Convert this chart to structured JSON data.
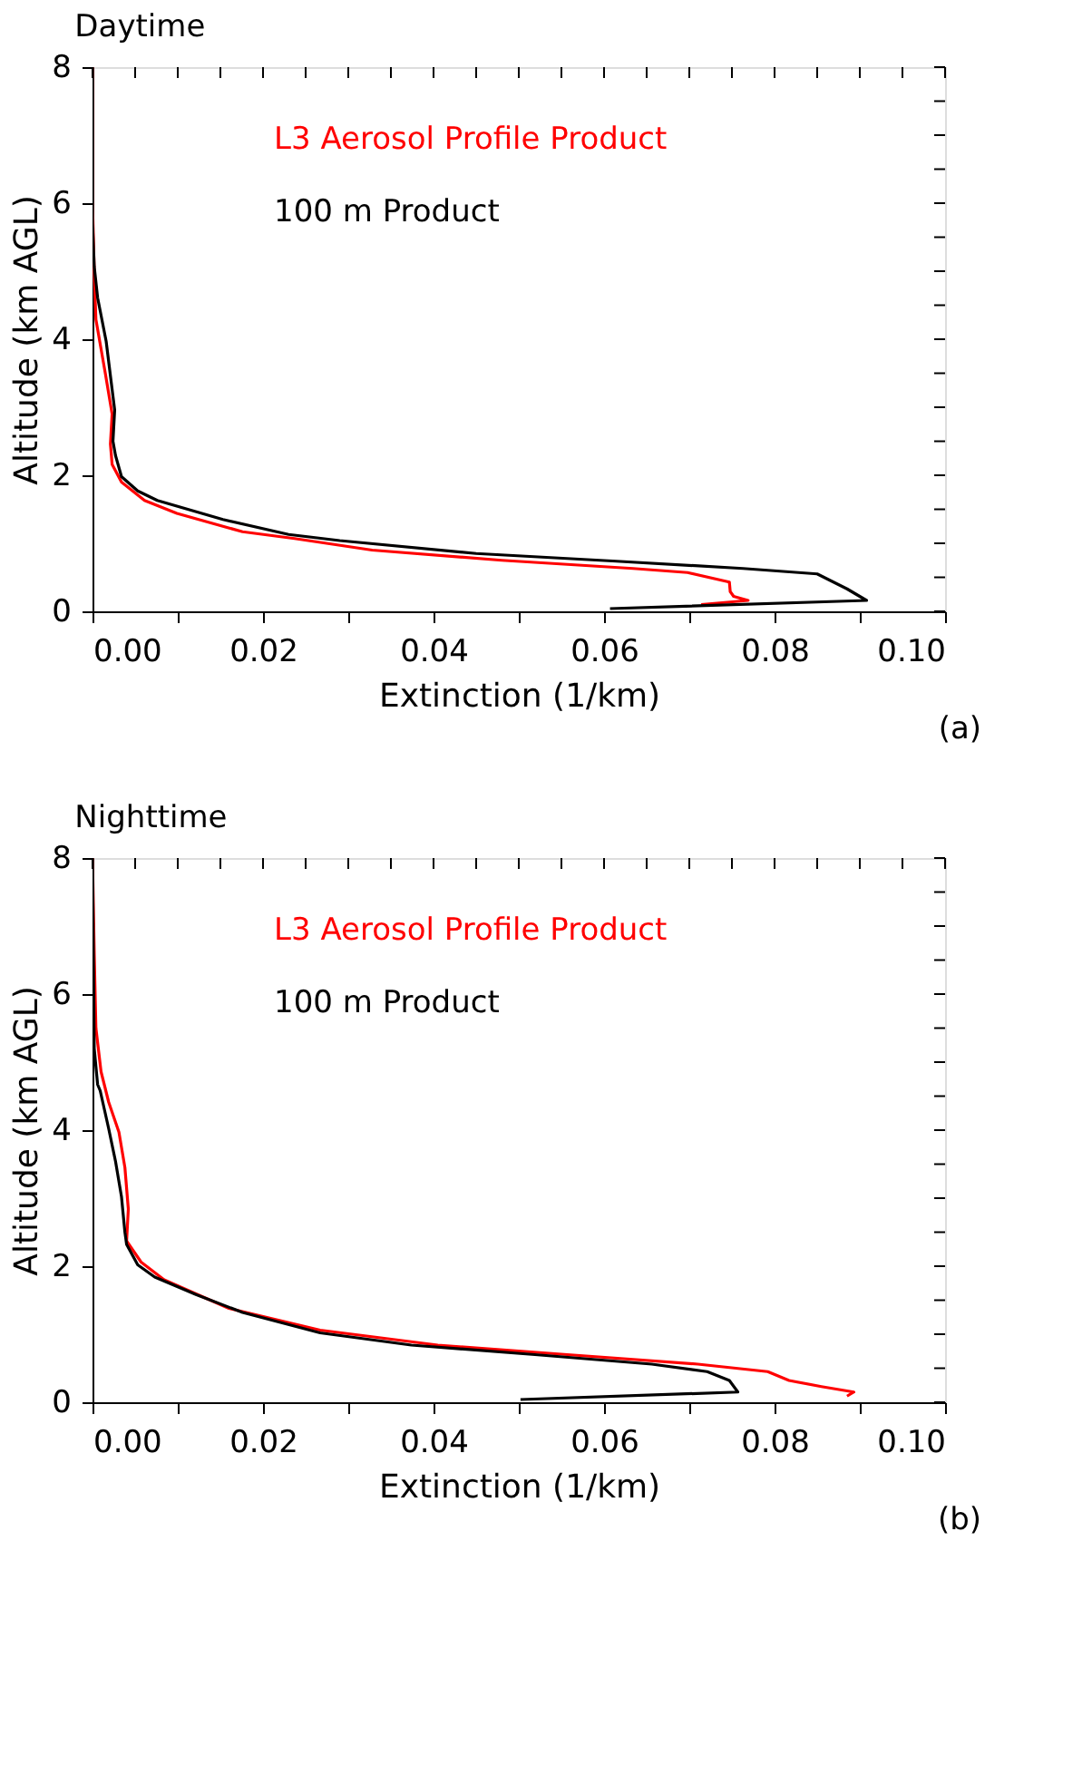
{
  "chart_data": [
    {
      "type": "line",
      "title": "Daytime",
      "xlabel": "Extinction (1/km)",
      "ylabel": "Altitude (km AGL)",
      "annotations": [
        "(a)"
      ],
      "legend": "top",
      "line_style": "solid",
      "xlim": [
        0,
        0.1
      ],
      "ylim": [
        0,
        8
      ],
      "xticks": [
        {
          "value": 0,
          "label": "0.00"
        },
        {
          "value": 0.005,
          "label": null
        },
        {
          "value": 0.01,
          "label": null
        },
        {
          "value": 0.015,
          "label": null
        },
        {
          "value": 0.02,
          "label": "0.02"
        },
        {
          "value": 0.025,
          "label": null
        },
        {
          "value": 0.03,
          "label": null
        },
        {
          "value": 0.035,
          "label": null
        },
        {
          "value": 0.04,
          "label": "0.04"
        },
        {
          "value": 0.045,
          "label": null
        },
        {
          "value": 0.05,
          "label": null
        },
        {
          "value": 0.055,
          "label": null
        },
        {
          "value": 0.06,
          "label": "0.06"
        },
        {
          "value": 0.065,
          "label": null
        },
        {
          "value": 0.07,
          "label": null
        },
        {
          "value": 0.075,
          "label": null
        },
        {
          "value": 0.08,
          "label": "0.08"
        },
        {
          "value": 0.085,
          "label": null
        },
        {
          "value": 0.09,
          "label": null
        },
        {
          "value": 0.095,
          "label": null
        },
        {
          "value": 0.1,
          "label": "0.10"
        }
      ],
      "yticks": [
        0,
        {
          "value": 0.5,
          "label": null
        },
        {
          "value": 1,
          "label": null
        },
        {
          "value": 1.5,
          "label": null
        },
        2,
        {
          "value": 2.5,
          "label": null
        },
        {
          "value": 3,
          "label": null
        },
        {
          "value": 3.5,
          "label": null
        },
        4,
        {
          "value": 4.5,
          "label": null
        },
        {
          "value": 5,
          "label": null
        },
        {
          "value": 5.5,
          "label": null
        },
        6,
        {
          "value": 6.5,
          "label": null
        },
        {
          "value": 7,
          "label": null
        },
        {
          "value": 7.5,
          "label": null
        },
        8
      ],
      "series": [
        {
          "name": "L3 Aerosol Profile Product",
          "color": "#ff0000",
          "x": [
            0.0714,
            0.0769,
            0.0752,
            0.0748,
            0.0747,
            0.0698,
            0.0634,
            0.048,
            0.0328,
            0.0237,
            0.0176,
            0.0099,
            0.0061,
            0.0034,
            0.0023,
            0.0021,
            0.0023,
            0.0015,
            0.0004,
            0.0002,
            0,
            0
          ],
          "values": [
            0.1,
            0.16,
            0.22,
            0.29,
            0.43,
            0.57,
            0.63,
            0.75,
            0.9,
            1.07,
            1.17,
            1.44,
            1.63,
            1.9,
            2.16,
            2.46,
            2.9,
            3.5,
            4.29,
            5.0,
            6.0,
            8.0
          ]
        },
        {
          "name": "100 m Product",
          "color": "#000000",
          "x": [
            0.0607,
            0.0908,
            0.0885,
            0.085,
            0.0763,
            0.061,
            0.045,
            0.029,
            0.023,
            0.0153,
            0.0076,
            0.0053,
            0.0034,
            0.0027,
            0.0024,
            0.0026,
            0.0016,
            0.0006,
            0.0002,
            0,
            0
          ],
          "values": [
            0.04,
            0.16,
            0.33,
            0.55,
            0.63,
            0.74,
            0.85,
            1.04,
            1.13,
            1.35,
            1.63,
            1.77,
            1.98,
            2.29,
            2.5,
            2.96,
            3.97,
            4.61,
            5.07,
            5.7,
            8.0
          ]
        }
      ]
    },
    {
      "type": "line",
      "title": "Nighttime",
      "xlabel": "Extinction (1/km)",
      "ylabel": "Altitude (km AGL)",
      "annotations": [
        "(b)"
      ],
      "legend": "top",
      "line_style": "solid",
      "xlim": [
        0,
        0.1
      ],
      "ylim": [
        0,
        8
      ],
      "xticks": [
        {
          "value": 0,
          "label": "0.00"
        },
        {
          "value": 0.005,
          "label": null
        },
        {
          "value": 0.01,
          "label": null
        },
        {
          "value": 0.015,
          "label": null
        },
        {
          "value": 0.02,
          "label": "0.02"
        },
        {
          "value": 0.025,
          "label": null
        },
        {
          "value": 0.03,
          "label": null
        },
        {
          "value": 0.035,
          "label": null
        },
        {
          "value": 0.04,
          "label": "0.04"
        },
        {
          "value": 0.045,
          "label": null
        },
        {
          "value": 0.05,
          "label": null
        },
        {
          "value": 0.055,
          "label": null
        },
        {
          "value": 0.06,
          "label": "0.06"
        },
        {
          "value": 0.065,
          "label": null
        },
        {
          "value": 0.07,
          "label": null
        },
        {
          "value": 0.075,
          "label": null
        },
        {
          "value": 0.08,
          "label": "0.08"
        },
        {
          "value": 0.085,
          "label": null
        },
        {
          "value": 0.09,
          "label": null
        },
        {
          "value": 0.095,
          "label": null
        },
        {
          "value": 0.1,
          "label": "0.10"
        }
      ],
      "yticks": [
        0,
        {
          "value": 0.5,
          "label": null
        },
        {
          "value": 1,
          "label": null
        },
        {
          "value": 1.5,
          "label": null
        },
        2,
        {
          "value": 2.5,
          "label": null
        },
        {
          "value": 3,
          "label": null
        },
        {
          "value": 3.5,
          "label": null
        },
        4,
        {
          "value": 4.5,
          "label": null
        },
        {
          "value": 5,
          "label": null
        },
        {
          "value": 5.5,
          "label": null
        },
        6,
        {
          "value": 6.5,
          "label": null
        },
        {
          "value": 7,
          "label": null
        },
        {
          "value": 7.5,
          "label": null
        },
        8
      ],
      "series": [
        {
          "name": "L3 Aerosol Profile Product",
          "color": "#ff0000",
          "x": [
            0.0885,
            0.0893,
            0.0855,
            0.0817,
            0.0792,
            0.071,
            0.0557,
            0.0405,
            0.0267,
            0.016,
            0.0084,
            0.0057,
            0.004,
            0.0042,
            0.0038,
            0.0031,
            0.0019,
            0.001,
            0.0004,
            0.0002,
            0
          ],
          "values": [
            0.09,
            0.15,
            0.23,
            0.32,
            0.45,
            0.56,
            0.7,
            0.84,
            1.06,
            1.38,
            1.8,
            2.06,
            2.37,
            2.84,
            3.45,
            3.97,
            4.41,
            4.86,
            5.5,
            6.6,
            8.0
          ]
        },
        {
          "name": "100 m Product",
          "color": "#000000",
          "x": [
            0.0502,
            0.0757,
            0.0747,
            0.0721,
            0.0656,
            0.0519,
            0.0374,
            0.0267,
            0.0176,
            0.0122,
            0.0073,
            0.0053,
            0.004,
            0.0038,
            0.0034,
            0.0027,
            0.0019,
            0.0009,
            0.0006,
            0.0002,
            0
          ],
          "values": [
            0.04,
            0.15,
            0.32,
            0.45,
            0.56,
            0.7,
            0.84,
            1.02,
            1.32,
            1.58,
            1.84,
            2.02,
            2.32,
            2.5,
            3.02,
            3.54,
            4.02,
            4.58,
            4.67,
            5.2,
            8.0
          ]
        }
      ]
    }
  ]
}
